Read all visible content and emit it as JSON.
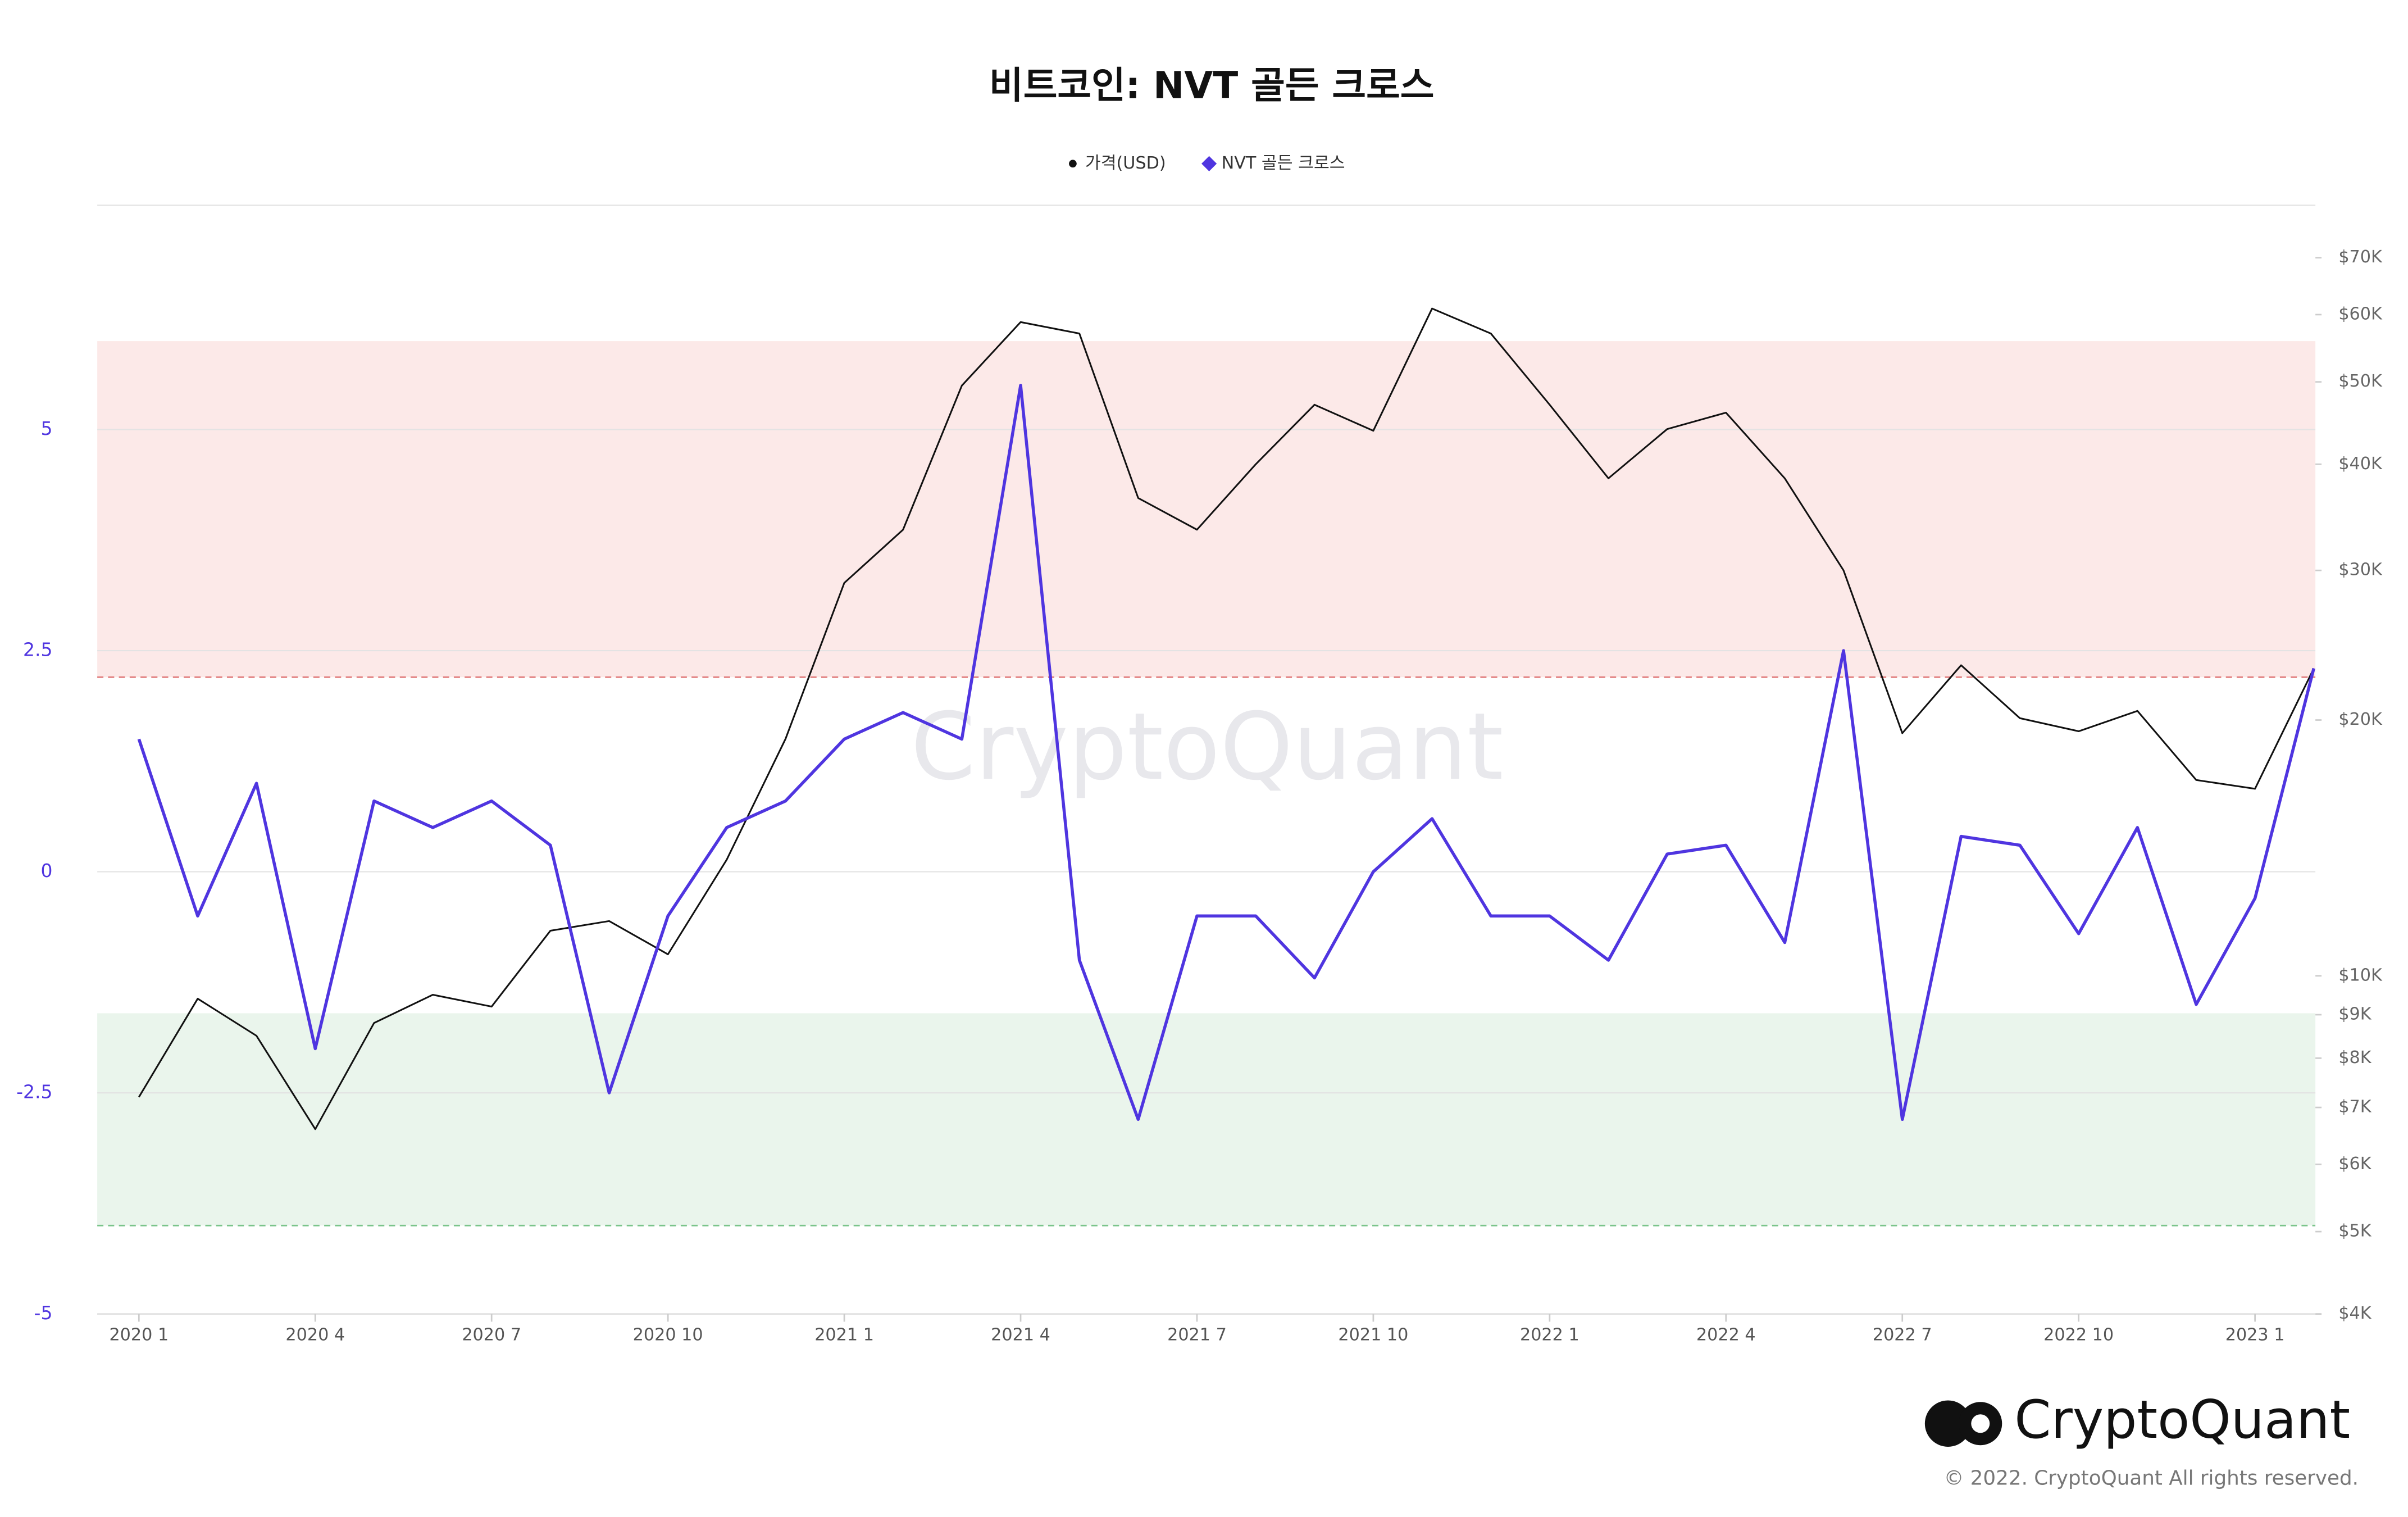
{
  "chart_data": {
    "type": "line",
    "title": "비트코인: NVT 골든 크로스",
    "watermark": "CryptoQuant",
    "brand": "CryptoQuant",
    "copyright": "© 2022. CryptoQuant All rights reserved.",
    "x": [
      "2020-01",
      "2020-02",
      "2020-03",
      "2020-04",
      "2020-05",
      "2020-06",
      "2020-07",
      "2020-08",
      "2020-09",
      "2020-10",
      "2020-11",
      "2020-12",
      "2021-01",
      "2021-02",
      "2021-03",
      "2021-04",
      "2021-05",
      "2021-06",
      "2021-07",
      "2021-08",
      "2021-09",
      "2021-10",
      "2021-11",
      "2021-12",
      "2022-01",
      "2022-02",
      "2022-03",
      "2022-04",
      "2022-05",
      "2022-06",
      "2022-07",
      "2022-08",
      "2022-09",
      "2022-10",
      "2022-11",
      "2022-12",
      "2023-01",
      "2023-02"
    ],
    "xticks": [
      {
        "value": "2020-01",
        "label": "2020 1"
      },
      {
        "value": "2020-04",
        "label": "2020 4"
      },
      {
        "value": "2020-07",
        "label": "2020 7"
      },
      {
        "value": "2020-10",
        "label": "2020 10"
      },
      {
        "value": "2021-01",
        "label": "2021 1"
      },
      {
        "value": "2021-04",
        "label": "2021 4"
      },
      {
        "value": "2021-07",
        "label": "2021 7"
      },
      {
        "value": "2021-10",
        "label": "2021 10"
      },
      {
        "value": "2022-01",
        "label": "2022 1"
      },
      {
        "value": "2022-04",
        "label": "2022 4"
      },
      {
        "value": "2022-07",
        "label": "2022 7"
      },
      {
        "value": "2022-10",
        "label": "2022 10"
      },
      {
        "value": "2023-01",
        "label": "2023 1"
      }
    ],
    "series": [
      {
        "name": "가격(USD)",
        "color": "#111111",
        "axis": "y2",
        "values": [
          7200,
          9400,
          8500,
          6600,
          8800,
          9500,
          9200,
          11300,
          11600,
          10600,
          13700,
          19000,
          29000,
          33500,
          49500,
          58800,
          57000,
          36500,
          33500,
          40000,
          47000,
          43800,
          61000,
          57000,
          47000,
          38500,
          44000,
          46000,
          38500,
          30000,
          19300,
          23200,
          20100,
          19400,
          20500,
          17000,
          16600,
          23000
        ]
      },
      {
        "name": "NVT 골든 크로스",
        "color": "#4f35e0",
        "values": [
          1.5,
          -0.5,
          1.0,
          -2.0,
          0.8,
          0.5,
          0.8,
          0.3,
          -2.5,
          -0.5,
          0.5,
          0.8,
          1.5,
          1.8,
          1.5,
          5.5,
          -1.0,
          -2.8,
          -0.5,
          -0.5,
          -1.2,
          0,
          0.6,
          -0.5,
          -0.5,
          -1.0,
          0.2,
          0.3,
          -0.8,
          2.5,
          -2.8,
          0.4,
          0.3,
          -0.7,
          0.5,
          -1.5,
          -0.3,
          2.3
        ]
      }
    ],
    "ylim": [
      -5,
      7.5
    ],
    "yticks": [
      -5,
      -2.5,
      0,
      2.5,
      5
    ],
    "y2lim": [
      4000,
      80000
    ],
    "y2log": true,
    "y2ticks": [
      {
        "value": 4000,
        "label": "$4K"
      },
      {
        "value": 5000,
        "label": "$5K"
      },
      {
        "value": 6000,
        "label": "$6K"
      },
      {
        "value": 7000,
        "label": "$7K"
      },
      {
        "value": 8000,
        "label": "$8K"
      },
      {
        "value": 9000,
        "label": "$9K"
      },
      {
        "value": 10000,
        "label": "$10K"
      },
      {
        "value": 20000,
        "label": "$20K"
      },
      {
        "value": 30000,
        "label": "$30K"
      },
      {
        "value": 40000,
        "label": "$40K"
      },
      {
        "value": 50000,
        "label": "$50K"
      },
      {
        "value": 60000,
        "label": "$60K"
      },
      {
        "value": 70000,
        "label": "$70K"
      }
    ],
    "bands": [
      {
        "from": 2.2,
        "to": 6,
        "color": "#fce9e8",
        "line": "#e07a7a"
      },
      {
        "from": -4,
        "to": -1.6,
        "color": "#eaf5ec",
        "line": "#7ac48a"
      }
    ],
    "grid": true
  }
}
